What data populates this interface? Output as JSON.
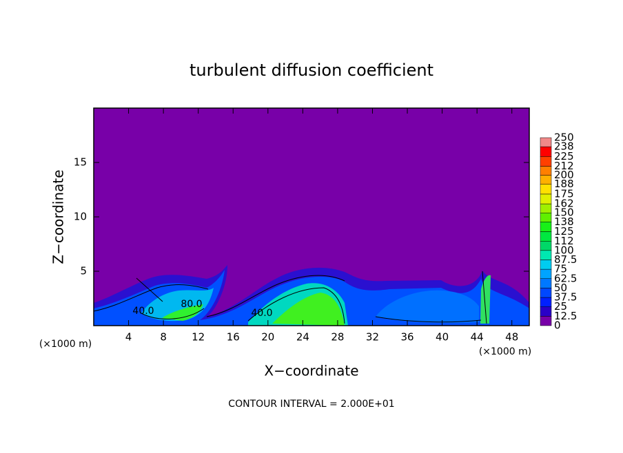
{
  "chart_data": {
    "type": "contour",
    "title": "turbulent diffusion coefficient",
    "xlabel": "X−coordinate",
    "ylabel": "Z−coordinate",
    "x_unit_labels": [
      "(×1000 m)",
      "(×1000 m)"
    ],
    "footer": "CONTOUR INTERVAL = 2.000E+01",
    "contour_labels": [
      "40.0",
      "80.0",
      "40.0"
    ],
    "xlim": [
      0,
      50
    ],
    "xticks": [
      4,
      8,
      12,
      16,
      20,
      24,
      28,
      32,
      36,
      40,
      44,
      48
    ],
    "ylim": [
      0,
      20
    ],
    "yticks": [
      5,
      10,
      15
    ],
    "colorbar": {
      "levels": [
        0,
        12.5,
        25,
        37.5,
        50,
        62.5,
        75,
        87.5,
        100,
        112,
        125,
        138,
        150,
        162,
        175,
        188,
        200,
        212,
        225,
        238,
        250
      ],
      "colors": [
        "#7800a8",
        "#2a00c8",
        "#0020ff",
        "#0048ff",
        "#0078ff",
        "#00a4ff",
        "#00ccf0",
        "#00e8b0",
        "#00d868",
        "#00e840",
        "#18f018",
        "#60f000",
        "#a0f000",
        "#e0f000",
        "#ffe000",
        "#ffb000",
        "#ff8000",
        "#ff4000",
        "#ff0000",
        "#f08888"
      ]
    }
  }
}
